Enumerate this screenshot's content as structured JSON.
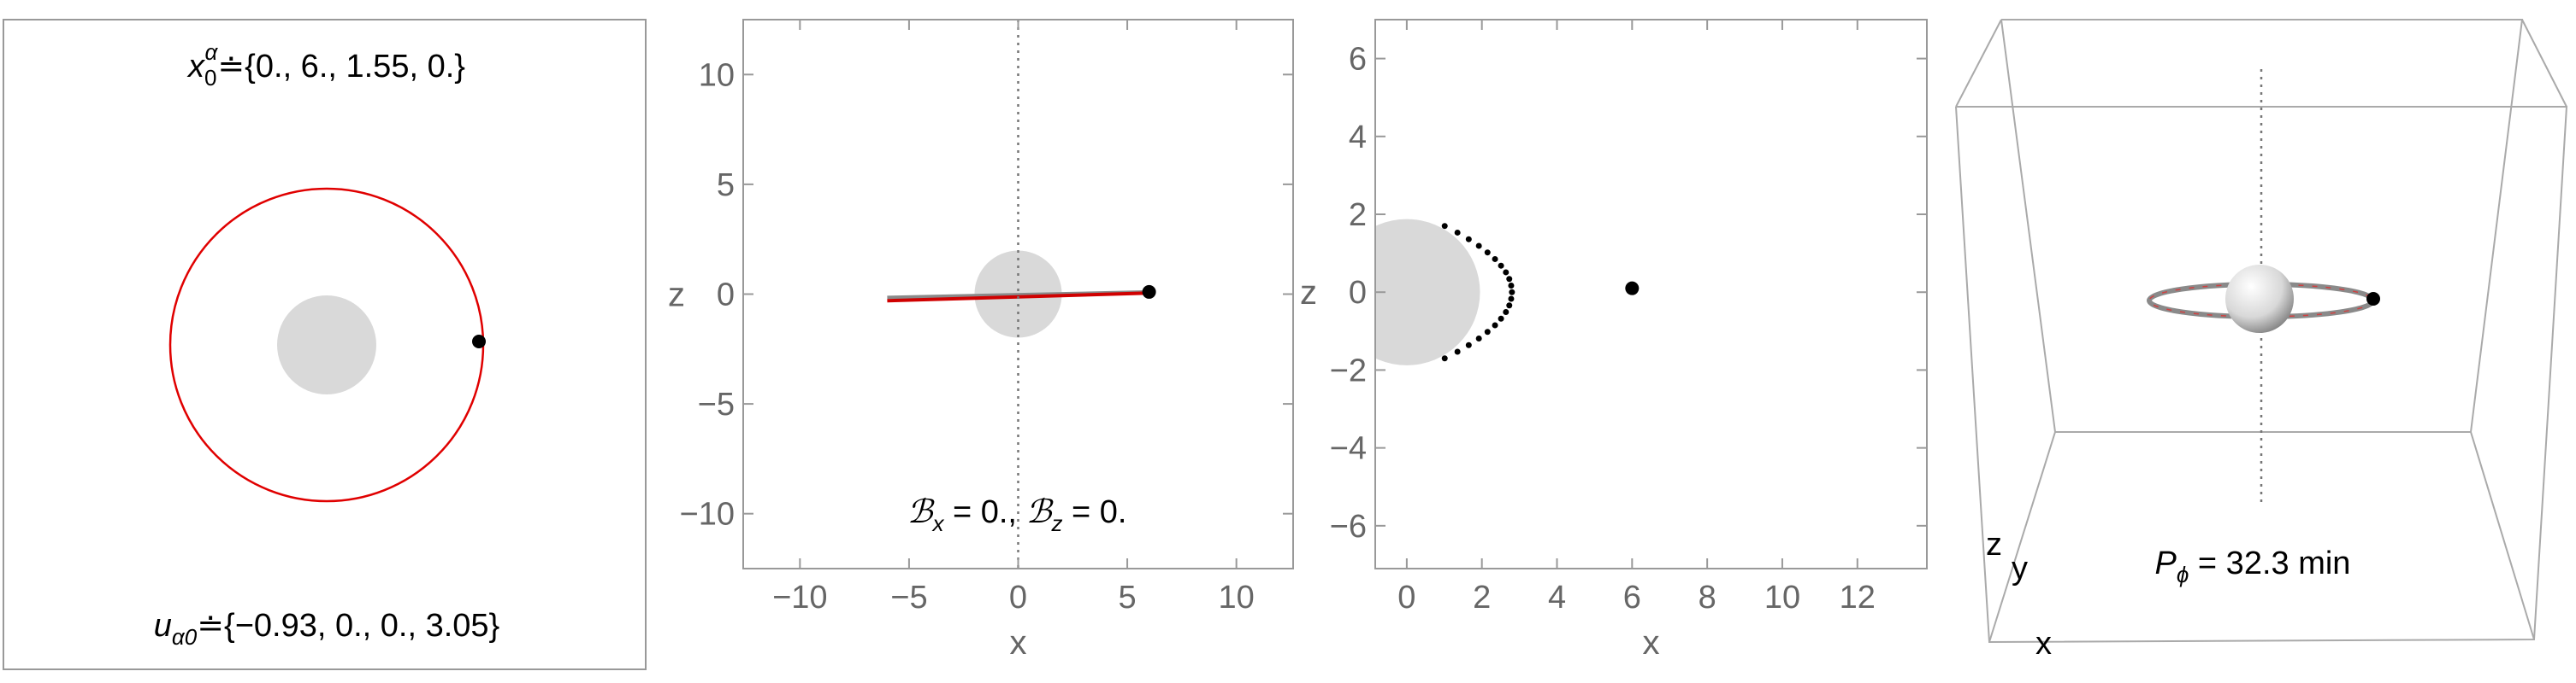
{
  "chart_data": [
    {
      "type": "orbit",
      "top_text": [
        "x",
        "0",
        "α",
        "≐{0., 6., 1.55, 0.}"
      ],
      "bottom_text": [
        "u",
        "α0",
        "≐{−0.93, 0., 0., 3.05}"
      ]
    },
    {
      "type": "line",
      "xlabel": "x",
      "ylabel": "z",
      "xlim": [
        -12.6,
        12.6
      ],
      "ylim": [
        -12.5,
        12.5
      ],
      "xticks": [
        {
          "value": -10,
          "label": "−10"
        },
        {
          "value": -5,
          "label": "−5"
        },
        0,
        5,
        10
      ],
      "yticks": [
        {
          "value": -10,
          "label": "−10"
        },
        {
          "value": -5,
          "label": "−5"
        },
        0,
        5,
        10
      ],
      "disk": {
        "x": 0,
        "y": 0,
        "r": 2
      },
      "series": [
        {
          "color": "#8a8a8a",
          "style": "line",
          "x": [
            -6,
            6
          ],
          "values": [
            -0.15,
            0.1
          ]
        },
        {
          "color": "#d00000",
          "style": "line",
          "x": [
            -6,
            6
          ],
          "values": [
            -0.3,
            0.05
          ]
        },
        {
          "color": "#000000",
          "style": "point",
          "x": [
            6
          ],
          "values": [
            0.1
          ]
        }
      ],
      "annotation": [
        "ℬ",
        "x",
        " = 0., ",
        "ℬ",
        "z",
        " = 0."
      ]
    },
    {
      "type": "line",
      "xlabel": "x",
      "ylabel": "z",
      "xlim": [
        -0.84,
        13.85
      ],
      "ylim": [
        -7.1,
        7.0
      ],
      "xticks": [
        0,
        2,
        4,
        6,
        8,
        10,
        12
      ],
      "yticks": [
        {
          "value": -6,
          "label": "−6"
        },
        {
          "value": -4,
          "label": "−4"
        },
        {
          "value": -2,
          "label": "−2"
        },
        0,
        2,
        4,
        6
      ],
      "disk": {
        "x": 0,
        "y": 0,
        "r": 1.95
      },
      "series": [
        {
          "color": "#000000",
          "style": "dots",
          "x": [
            1.01,
            1.35,
            1.65,
            1.92,
            2.15,
            2.35,
            2.51,
            2.64,
            2.73,
            2.78,
            2.8,
            2.78,
            2.73,
            2.64,
            2.51,
            2.35,
            2.15,
            1.92,
            1.65,
            1.35,
            1.01
          ],
          "values": [
            -1.7,
            -1.53,
            -1.36,
            -1.19,
            -1.02,
            -0.85,
            -0.68,
            -0.51,
            -0.34,
            -0.17,
            0,
            0.17,
            0.34,
            0.51,
            0.68,
            0.85,
            1.02,
            1.19,
            1.36,
            1.53,
            1.7
          ]
        },
        {
          "color": "#000000",
          "style": "point",
          "x": [
            6
          ],
          "values": [
            0.1
          ]
        }
      ]
    },
    {
      "type": "box3d",
      "xlabel": "x",
      "ylabel": "y",
      "zlabel": "z",
      "annotation": [
        "P",
        "ϕ",
        " = 32.3 min"
      ]
    }
  ]
}
